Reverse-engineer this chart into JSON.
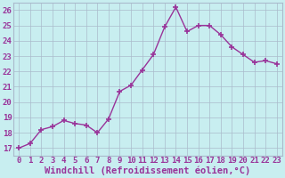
{
  "x": [
    0,
    1,
    2,
    3,
    4,
    5,
    6,
    7,
    8,
    9,
    10,
    11,
    12,
    13,
    14,
    15,
    16,
    17,
    18,
    19,
    20,
    21,
    22,
    23
  ],
  "y": [
    17.0,
    17.3,
    18.2,
    18.4,
    18.8,
    18.6,
    18.5,
    18.0,
    18.9,
    20.7,
    21.1,
    22.1,
    23.1,
    24.9,
    26.2,
    24.6,
    25.0,
    25.0,
    24.4,
    23.6,
    23.1,
    22.6,
    22.7,
    22.5
  ],
  "line_color": "#993399",
  "marker": "+",
  "marker_size": 4,
  "line_width": 1,
  "xlabel": "Windchill (Refroidissement éolien,°C)",
  "xlim": [
    -0.5,
    23.5
  ],
  "ylim": [
    16.5,
    26.5
  ],
  "yticks": [
    17,
    18,
    19,
    20,
    21,
    22,
    23,
    24,
    25,
    26
  ],
  "xticks": [
    0,
    1,
    2,
    3,
    4,
    5,
    6,
    7,
    8,
    9,
    10,
    11,
    12,
    13,
    14,
    15,
    16,
    17,
    18,
    19,
    20,
    21,
    22,
    23
  ],
  "bg_color": "#c8eef0",
  "grid_color": "#aabbcc",
  "tick_color": "#993399",
  "xlabel_color": "#993399",
  "tick_fontsize": 6.5,
  "xlabel_fontsize": 7.5
}
